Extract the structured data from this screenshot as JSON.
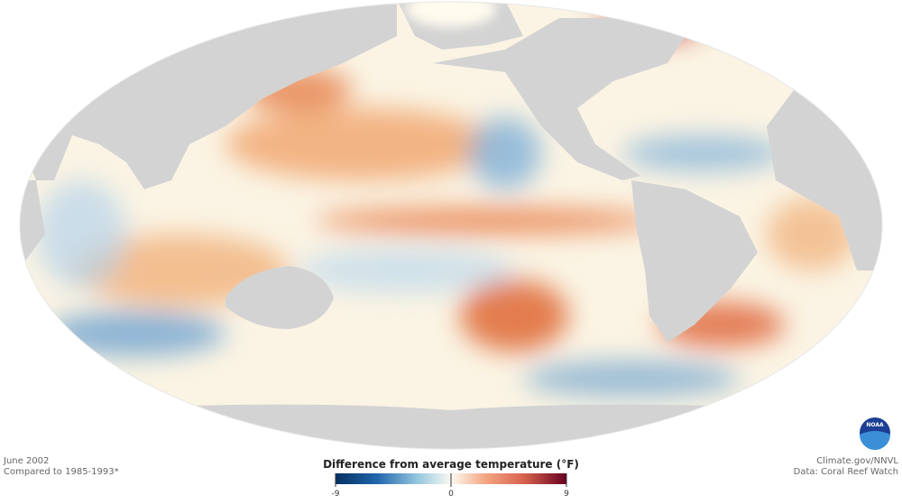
{
  "map": {
    "caption_left": [
      "June 2002",
      "Compared to 1985-1993*"
    ],
    "credits": [
      "Climate.gov/NNVL",
      "Data: Coral Reef Watch"
    ],
    "logo": "NOAA"
  },
  "legend": {
    "title": "Difference from average temperature (°F)",
    "lim": [
      -9,
      9
    ],
    "ticks": [
      -9,
      0,
      9
    ]
  }
}
